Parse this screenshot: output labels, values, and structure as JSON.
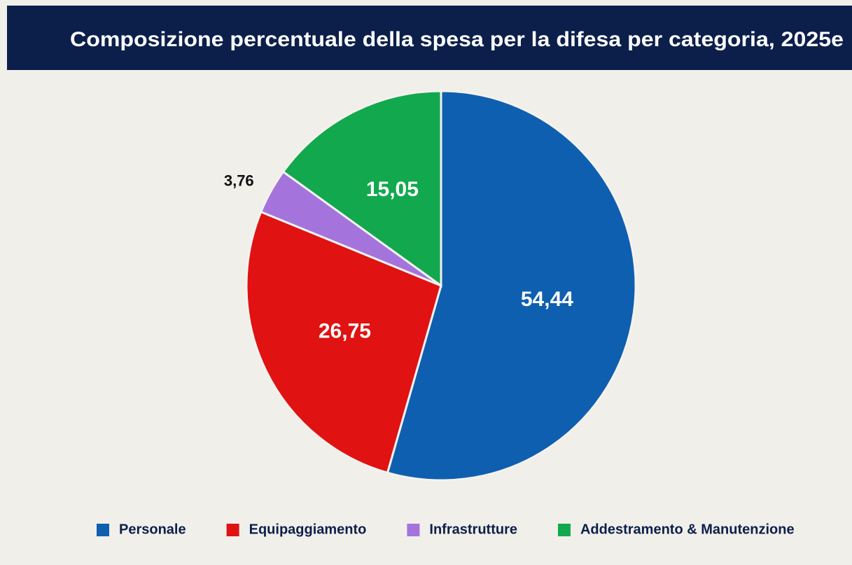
{
  "chart_data": {
    "type": "pie",
    "title": "Composizione percentuale della spesa per la difesa per categoria, 2025e",
    "categories": [
      "Personale",
      "Equipaggiamento",
      "Infrastrutture",
      "Addestramento & Manutenzione"
    ],
    "values": [
      54.44,
      26.75,
      3.76,
      15.05
    ],
    "value_labels": [
      "54,44",
      "26,75",
      "3,76",
      "15,05"
    ],
    "colors": [
      "#0f5fb0",
      "#e01212",
      "#a474dc",
      "#12a84e"
    ],
    "legend": "bottom"
  }
}
